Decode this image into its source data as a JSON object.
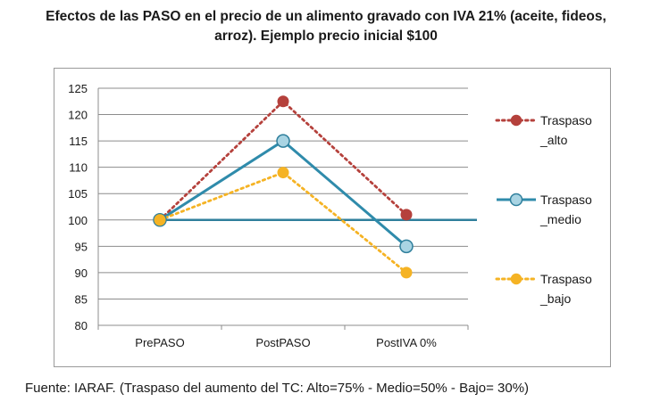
{
  "title_line1": "Efectos de las PASO en el precio de un alimento gravado con IVA 21% (aceite, fideos,",
  "title_line2": "arroz). Ejemplo precio inicial $100",
  "source": "Fuente: IARAF. (Traspaso del aumento del TC: Alto=75%  - Medio=50%  -  Bajo= 30%)",
  "chart_data": {
    "type": "line",
    "categories": [
      "PrePASO",
      "PostPASO",
      "PostIVA 0%"
    ],
    "ylim": [
      80,
      125
    ],
    "yticks": [
      80,
      85,
      90,
      95,
      100,
      105,
      110,
      115,
      120,
      125
    ],
    "grid": true,
    "legend_position": "right",
    "reference_line": 100,
    "series": [
      {
        "name": "Traspaso _alto",
        "name_lines": [
          "Traspaso",
          "_alto"
        ],
        "values": [
          100,
          122.5,
          101
        ],
        "color": "#b5413c",
        "style": "dotted"
      },
      {
        "name": "Traspaso _medio",
        "name_lines": [
          "Traspaso",
          "_medio"
        ],
        "values": [
          100,
          115,
          95
        ],
        "color": "#2f8bab",
        "style": "solid"
      },
      {
        "name": "Traspaso _bajo",
        "name_lines": [
          "Traspaso",
          "_bajo"
        ],
        "values": [
          100,
          109,
          90
        ],
        "color": "#f5b324",
        "style": "dotted"
      }
    ]
  }
}
